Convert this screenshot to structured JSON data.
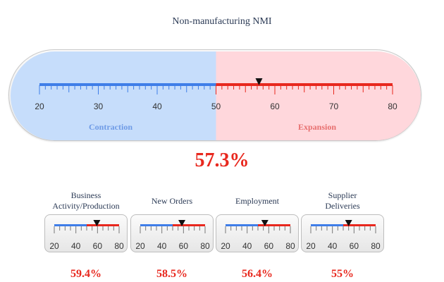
{
  "title": "Non-manufacturing NMI",
  "main_gauge": {
    "min": 20,
    "max": 80,
    "threshold": 50,
    "value": 57.3,
    "ticks": [
      "20",
      "30",
      "40",
      "50",
      "60",
      "70",
      "80"
    ],
    "left_region_label": "Contraction",
    "right_region_label": "Expansion",
    "display_value": "57.3%"
  },
  "small_gauges": [
    {
      "label_lines": [
        "Business",
        "Activity/Production"
      ],
      "min": 20,
      "max": 80,
      "threshold": 50,
      "value": 59.4,
      "ticks": [
        "20",
        "40",
        "60",
        "80"
      ],
      "display_value": "59.4%"
    },
    {
      "label_lines": [
        "New Orders"
      ],
      "min": 20,
      "max": 80,
      "threshold": 50,
      "value": 58.5,
      "ticks": [
        "20",
        "40",
        "60",
        "80"
      ],
      "display_value": "58.5%"
    },
    {
      "label_lines": [
        "Employment"
      ],
      "min": 20,
      "max": 80,
      "threshold": 50,
      "value": 56.4,
      "ticks": [
        "20",
        "40",
        "60",
        "80"
      ],
      "display_value": "56.4%"
    },
    {
      "label_lines": [
        "Supplier",
        "Deliveries"
      ],
      "min": 20,
      "max": 80,
      "threshold": 50,
      "value": 55,
      "ticks": [
        "20",
        "40",
        "60",
        "80"
      ],
      "display_value": "55%"
    }
  ],
  "colors": {
    "contraction": "#3f7ee8",
    "expansion": "#e8281e",
    "contraction_bg": "#c6ddfb",
    "expansion_bg": "#ffd7dc",
    "contraction_text": "#6f9be6",
    "expansion_text": "#e76f6f",
    "value_text": "#e8281e"
  }
}
